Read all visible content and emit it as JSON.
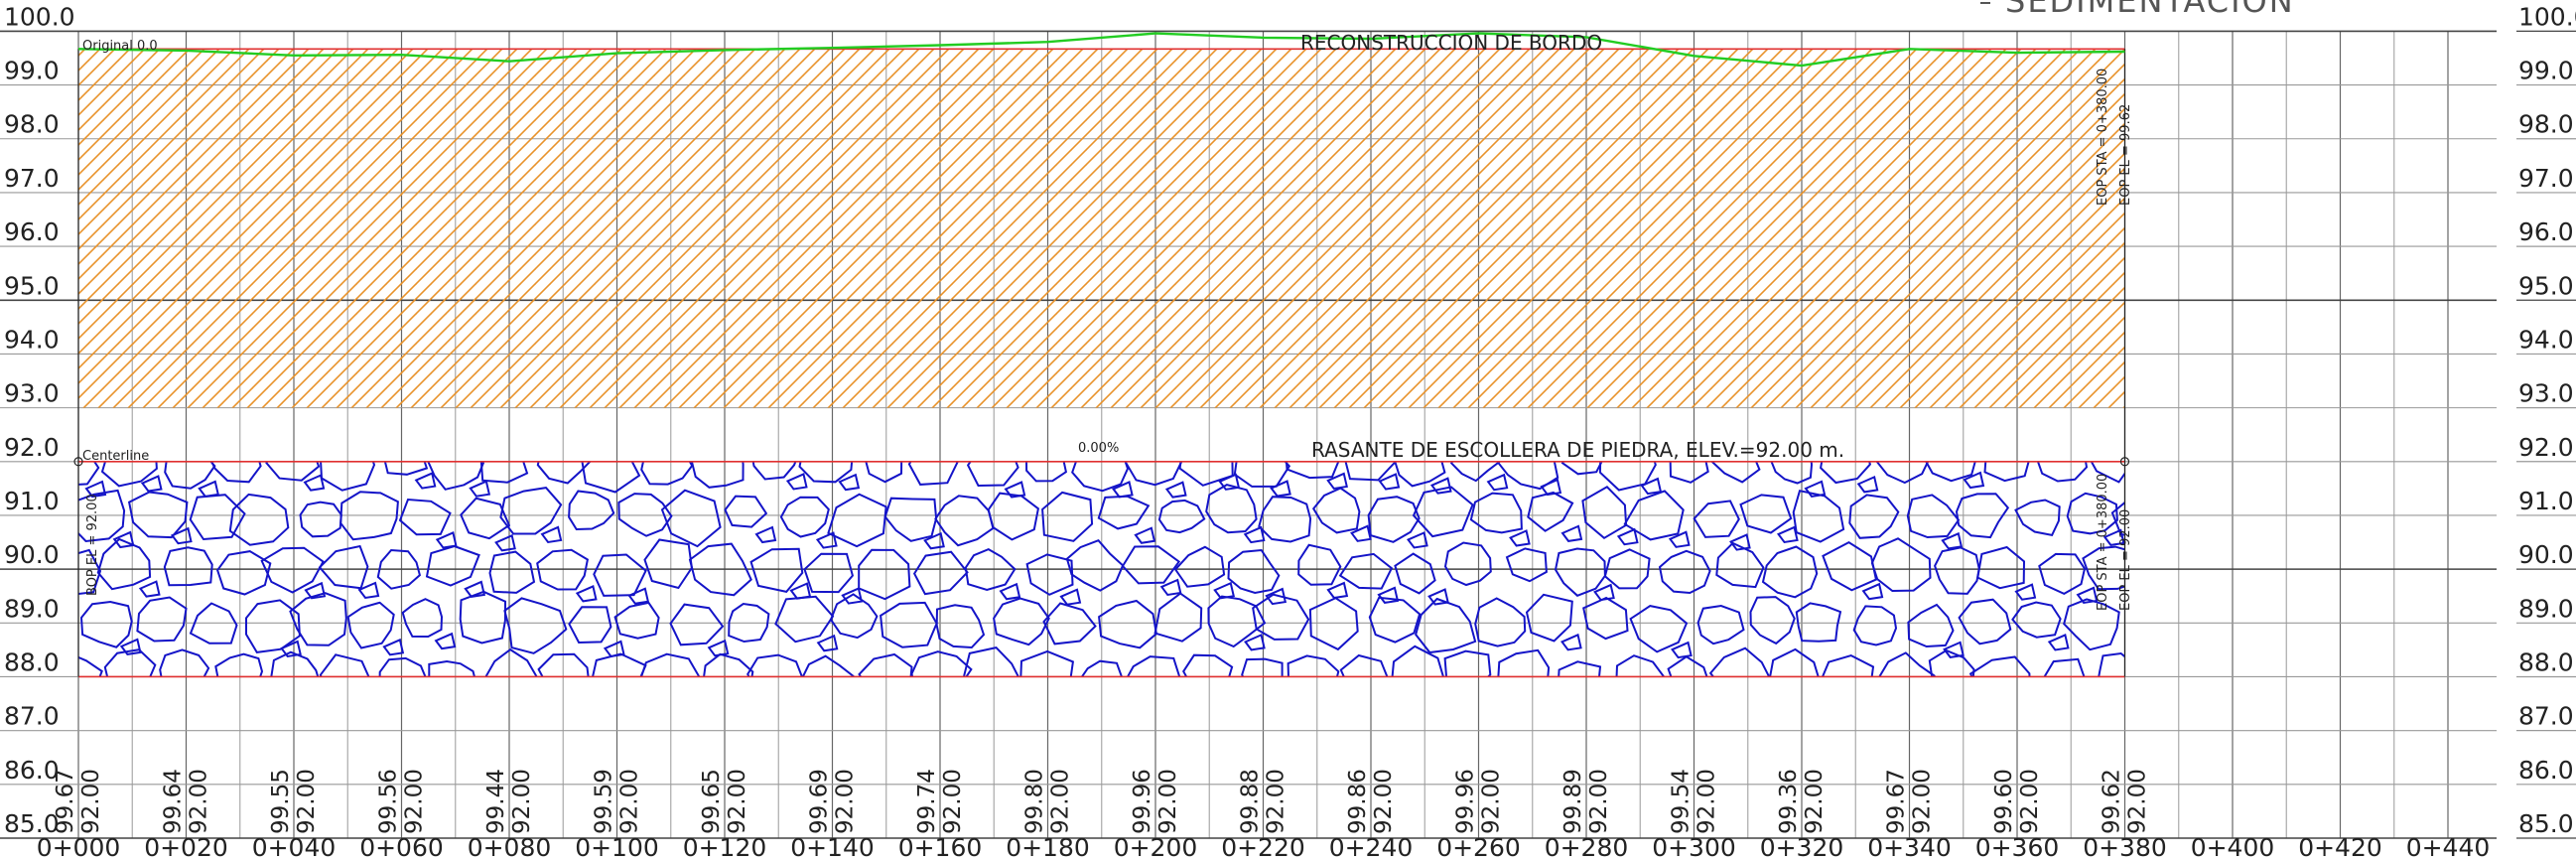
{
  "axis": {
    "elevations": [
      "100.0",
      "99.0",
      "98.0",
      "97.0",
      "96.0",
      "95.0",
      "94.0",
      "93.0",
      "92.0",
      "91.0",
      "90.0",
      "89.0",
      "88.0",
      "87.0",
      "86.0",
      "85.0"
    ],
    "stations": [
      "0+000",
      "0+020",
      "0+040",
      "0+060",
      "0+080",
      "0+100",
      "0+120",
      "0+140",
      "0+160",
      "0+180",
      "0+200",
      "0+220",
      "0+240",
      "0+260",
      "0+280",
      "0+300",
      "0+320",
      "0+340",
      "0+360",
      "0+380",
      "0+400",
      "0+420",
      "0+440"
    ]
  },
  "profile": {
    "ground": [
      "99.67",
      "99.64",
      "99.55",
      "99.56",
      "99.44",
      "99.59",
      "99.65",
      "99.69",
      "99.74",
      "99.80",
      "99.96",
      "99.88",
      "99.86",
      "99.96",
      "99.89",
      "99.54",
      "99.36",
      "99.67",
      "99.60",
      "99.62"
    ],
    "design": [
      "92.00",
      "92.00",
      "92.00",
      "92.00",
      "92.00",
      "92.00",
      "92.00",
      "92.00",
      "92.00",
      "92.00",
      "92.00",
      "92.00",
      "92.00",
      "92.00",
      "92.00",
      "92.00",
      "92.00",
      "92.00",
      "92.00",
      "92.00"
    ]
  },
  "annotations": {
    "sedimentation": "SEDIMENTACION",
    "original": "Original 0.0",
    "reconstruction": "RECONSTRUCCION DE BORDO",
    "slope": "0.00%",
    "grade": "RASANTE DE ESCOLLERA DE PIEDRA, ELEV.=92.00 m.",
    "centerline": "Centerline",
    "bop_el": "BOP EL = 92.00",
    "eop_sta_top": "EOP STA = 0+380.00",
    "eop_el_top": "EOP EL = 99.62",
    "eop_sta_bottom": "EOP STA = 0+380.00",
    "eop_el_bottom": "EOP EL = 92.00"
  }
}
